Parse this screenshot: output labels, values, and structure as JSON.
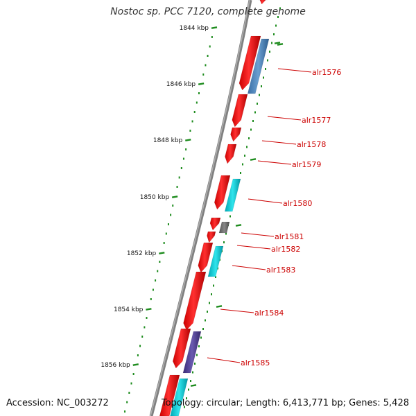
{
  "title": "Nostoc sp. PCC 7120, complete genome",
  "accession": "Accession: NC_003272",
  "summary": "Topology: circular; Length: 6,413,771 bp; Genes: 5,428",
  "colors": {
    "backbone": "#808080",
    "gene_red": "#ff0000",
    "gene_blue": "#4a7fb5",
    "gene_cyan": "#00c8d2",
    "gene_gray": "#707070",
    "gene_purple": "#4b3c8c",
    "tick_green": "#1e8c1e",
    "label_red": "#cc0000"
  },
  "scale_labels": [
    "1844 kbp",
    "1846 kbp",
    "1848 kbp",
    "1850 kbp",
    "1852 kbp",
    "1854 kbp",
    "1856 kbp"
  ],
  "gene_labels": [
    "alr1576",
    "alr1577",
    "alr1578",
    "alr1579",
    "alr1580",
    "alr1581",
    "alr1582",
    "alr1583",
    "alr1584",
    "alr1585"
  ],
  "chart_data": {
    "type": "genome-map",
    "topology": "circular",
    "length_bp": 6413771,
    "genes_total": 5428,
    "visible_range_kbp": [
      1843,
      1858
    ],
    "scale_ticks_kbp": [
      1844,
      1846,
      1848,
      1850,
      1852,
      1854,
      1856
    ],
    "labeled_genes": [
      "alr1576",
      "alr1577",
      "alr1578",
      "alr1579",
      "alr1580",
      "alr1581",
      "alr1582",
      "alr1583",
      "alr1584",
      "alr1585"
    ]
  }
}
